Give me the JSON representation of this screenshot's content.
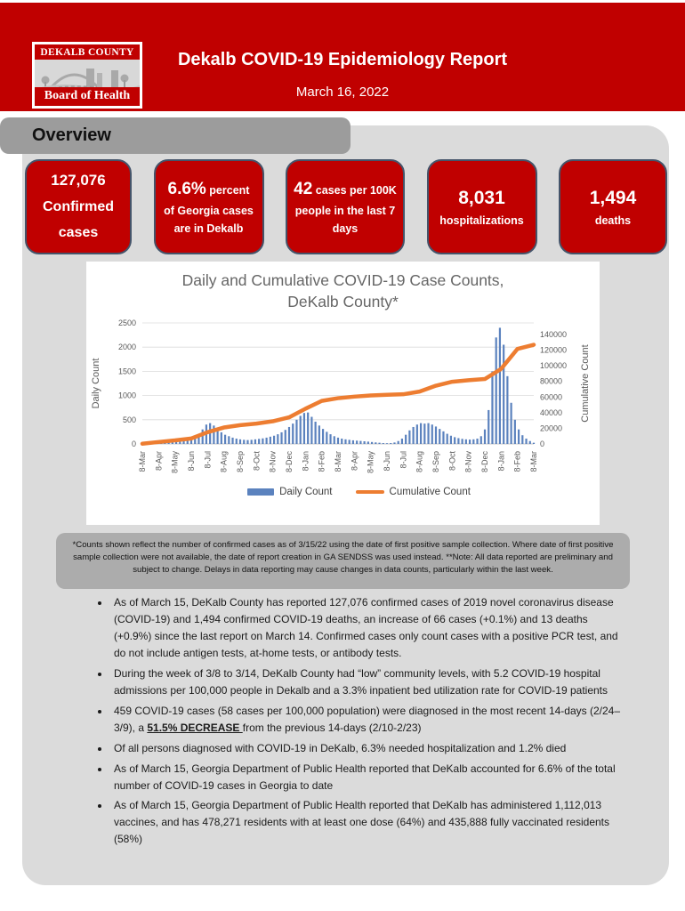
{
  "header": {
    "logo_top": "DEKALB COUNTY",
    "logo_bottom": "Board of Health",
    "title": "Dekalb COVID-19 Epidemiology Report",
    "date": "March 16, 2022"
  },
  "section": {
    "title": "Overview"
  },
  "colors": {
    "accent_red": "#C00000",
    "card_border_blue": "#44546A",
    "daily_bar_blue": "#5B82BE",
    "cumulative_line_orange": "#ED7D31",
    "panel_gray": "#DBDBDB",
    "tab_gray": "#9C9C9C",
    "footnote_gray": "#ACACAC"
  },
  "stat_cards": [
    {
      "variant": "plain",
      "big": "127,076",
      "inline_small": "",
      "lines": [
        "Confirmed",
        "cases"
      ]
    },
    {
      "variant": "inline",
      "big": "6.6%",
      "inline_small": " percent",
      "lines": [
        "of Georgia cases",
        "are in Dekalb"
      ]
    },
    {
      "variant": "inline",
      "big": "42",
      "inline_small": " cases per 100K",
      "lines": [
        "people in the last 7",
        "days"
      ]
    },
    {
      "variant": "big",
      "big": "8,031",
      "inline_small": "",
      "lines": [
        "hospitalizations"
      ]
    },
    {
      "variant": "big",
      "big": "1,494",
      "inline_small": "",
      "lines": [
        "deaths"
      ]
    }
  ],
  "chart_data": {
    "type": "combo",
    "title": "Daily and Cumulative COVID-19 Case Counts, DeKalb County*",
    "title_lines": [
      "Daily and Cumulative COVID-19 Case Counts,",
      "DeKalb County*"
    ],
    "ylabel_left": "Daily Count",
    "ylabel_right": "Cumulative Count",
    "ylim_left": [
      0,
      2500
    ],
    "yticks_left": [
      0,
      500,
      1000,
      1500,
      2000,
      2500
    ],
    "ylim_right": [
      0,
      140000
    ],
    "yticks_right": [
      0,
      20000,
      40000,
      60000,
      80000,
      100000,
      120000,
      140000
    ],
    "grid": true,
    "legend_position": "bottom",
    "x_tick_labels": [
      "8-Mar",
      "8-Apr",
      "8-May",
      "8-Jun",
      "8-Jul",
      "8-Aug",
      "8-Sep",
      "8-Oct",
      "8-Nov",
      "8-Dec",
      "8-Jan",
      "8-Feb",
      "8-Mar",
      "8-Apr",
      "8-May",
      "8-Jun",
      "8-Jul",
      "8-Aug",
      "8-Sep",
      "8-Oct",
      "8-Nov",
      "8-Dec",
      "8-Jan",
      "8-Feb",
      "8-Mar"
    ],
    "series": [
      {
        "name": "Daily Count",
        "type": "bar",
        "axis": "left",
        "color": "#5B82BE",
        "cadence": "weekly (approx., Mar 2020 - Mar 2022)",
        "values": [
          5,
          15,
          25,
          35,
          45,
          50,
          55,
          50,
          45,
          45,
          50,
          55,
          65,
          80,
          120,
          200,
          300,
          400,
          430,
          380,
          300,
          240,
          190,
          160,
          130,
          110,
          95,
          85,
          80,
          85,
          95,
          105,
          115,
          130,
          150,
          170,
          200,
          240,
          290,
          350,
          420,
          500,
          580,
          640,
          650,
          560,
          460,
          380,
          310,
          250,
          200,
          160,
          130,
          110,
          95,
          85,
          75,
          68,
          62,
          55,
          48,
          40,
          32,
          25,
          18,
          15,
          18,
          30,
          60,
          110,
          190,
          280,
          350,
          400,
          430,
          420,
          430,
          400,
          360,
          310,
          260,
          210,
          170,
          140,
          120,
          105,
          95,
          90,
          95,
          110,
          160,
          300,
          700,
          1500,
          2200,
          2400,
          2050,
          1400,
          850,
          500,
          300,
          180,
          110,
          60,
          25
        ]
      },
      {
        "name": "Cumulative Count",
        "type": "line",
        "axis": "right",
        "color": "#ED7D31",
        "cadence": "monthly (at each x tick)",
        "values": [
          300,
          2500,
          4500,
          7000,
          15000,
          21000,
          24000,
          26000,
          29000,
          34000,
          45000,
          55000,
          58500,
          60500,
          62000,
          62800,
          63500,
          67000,
          74500,
          79500,
          81500,
          83000,
          96000,
          121500,
          126800
        ]
      }
    ]
  },
  "footnote": "*Counts shown reflect the number of confirmed cases as of 3/15/22 using the date of first positive sample collection. Where date of first positive sample collection were not available, the date of report creation in GA SENDSS was used instead. **Note: All data reported are preliminary and subject to change. Delays in data reporting may cause changes in data counts, particularly within the last week.",
  "bullets": [
    [
      {
        "t": "As of March 15, DeKalb County has reported 127,076 confirmed cases of 2019 novel coronavirus disease (COVID-19) and 1,494 confirmed COVID-19 deaths, an increase of 66 cases (+0.1%) and 13 deaths (+0.9%) since the last report on March 14. Confirmed cases only count cases with a positive PCR test, and do not include antigen tests, at-home tests, or antibody tests.",
        "em": false
      }
    ],
    [
      {
        "t": "During the week of 3/8 to 3/14, DeKalb County had “low” community levels, with 5.2 COVID-19 hospital admissions per 100,000 people in Dekalb and a 3.3% inpatient bed utilization rate for COVID-19 patients",
        "em": false
      }
    ],
    [
      {
        "t": "459 COVID-19 cases (58 cases per 100,000 population) were diagnosed in the most recent 14-days (2/24–3/9), a ",
        "em": false
      },
      {
        "t": "51.5% DECREASE ",
        "em": true
      },
      {
        "t": "from the previous 14-days (2/10-2/23)",
        "em": false
      }
    ],
    [
      {
        "t": "Of all persons diagnosed with COVID-19 in DeKalb, 6.3% needed hospitalization and 1.2% died",
        "em": false
      }
    ],
    [
      {
        "t": "As of March 15, Georgia Department of Public Health reported that DeKalb accounted for 6.6% of the total number of COVID-19 cases in Georgia to date",
        "em": false
      }
    ],
    [
      {
        "t": "As of March 15, Georgia Department of Public Health reported that DeKalb has administered 1,112,013 vaccines, and has 478,271 residents with at least one dose (64%) and 435,888 fully vaccinated residents (58%)",
        "em": false
      }
    ]
  ]
}
